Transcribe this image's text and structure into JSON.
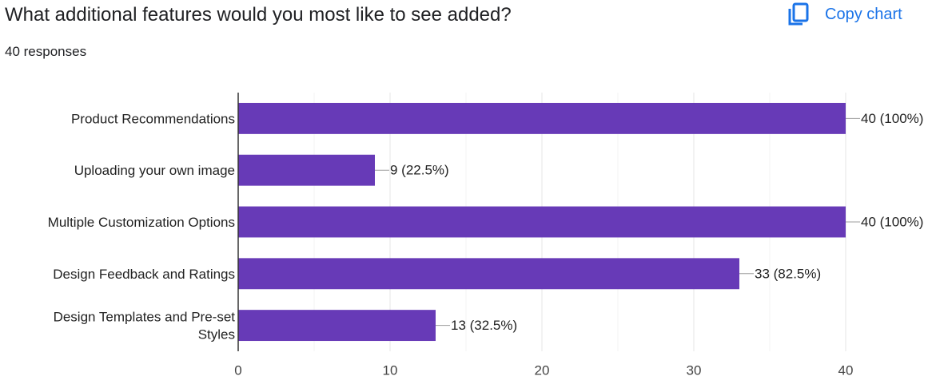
{
  "header": {
    "title": "What additional features would you most like to see added?",
    "responses": "40 responses",
    "copy_chart_label": "Copy chart",
    "copy_icon": "copy-icon",
    "accent_color": "#1a73e8"
  },
  "chart_data": {
    "type": "bar",
    "orientation": "horizontal",
    "categories": [
      [
        "Product Recommendations"
      ],
      [
        "Uploading your own image"
      ],
      [
        "Multiple Customization Options"
      ],
      [
        "Design Feedback and Ratings"
      ],
      [
        "Design Templates and Pre-set",
        "Styles"
      ]
    ],
    "values": [
      40,
      9,
      40,
      33,
      13
    ],
    "data_labels": [
      "40 (100%)",
      "9 (22.5%)",
      "40 (100%)",
      "33 (82.5%)",
      "13 (32.5%)"
    ],
    "xlim": [
      0,
      40
    ],
    "ticks": [
      0,
      10,
      20,
      30,
      40
    ],
    "grid": true,
    "bar_color": "#673ab7",
    "title": "",
    "xlabel": "",
    "ylabel": ""
  }
}
